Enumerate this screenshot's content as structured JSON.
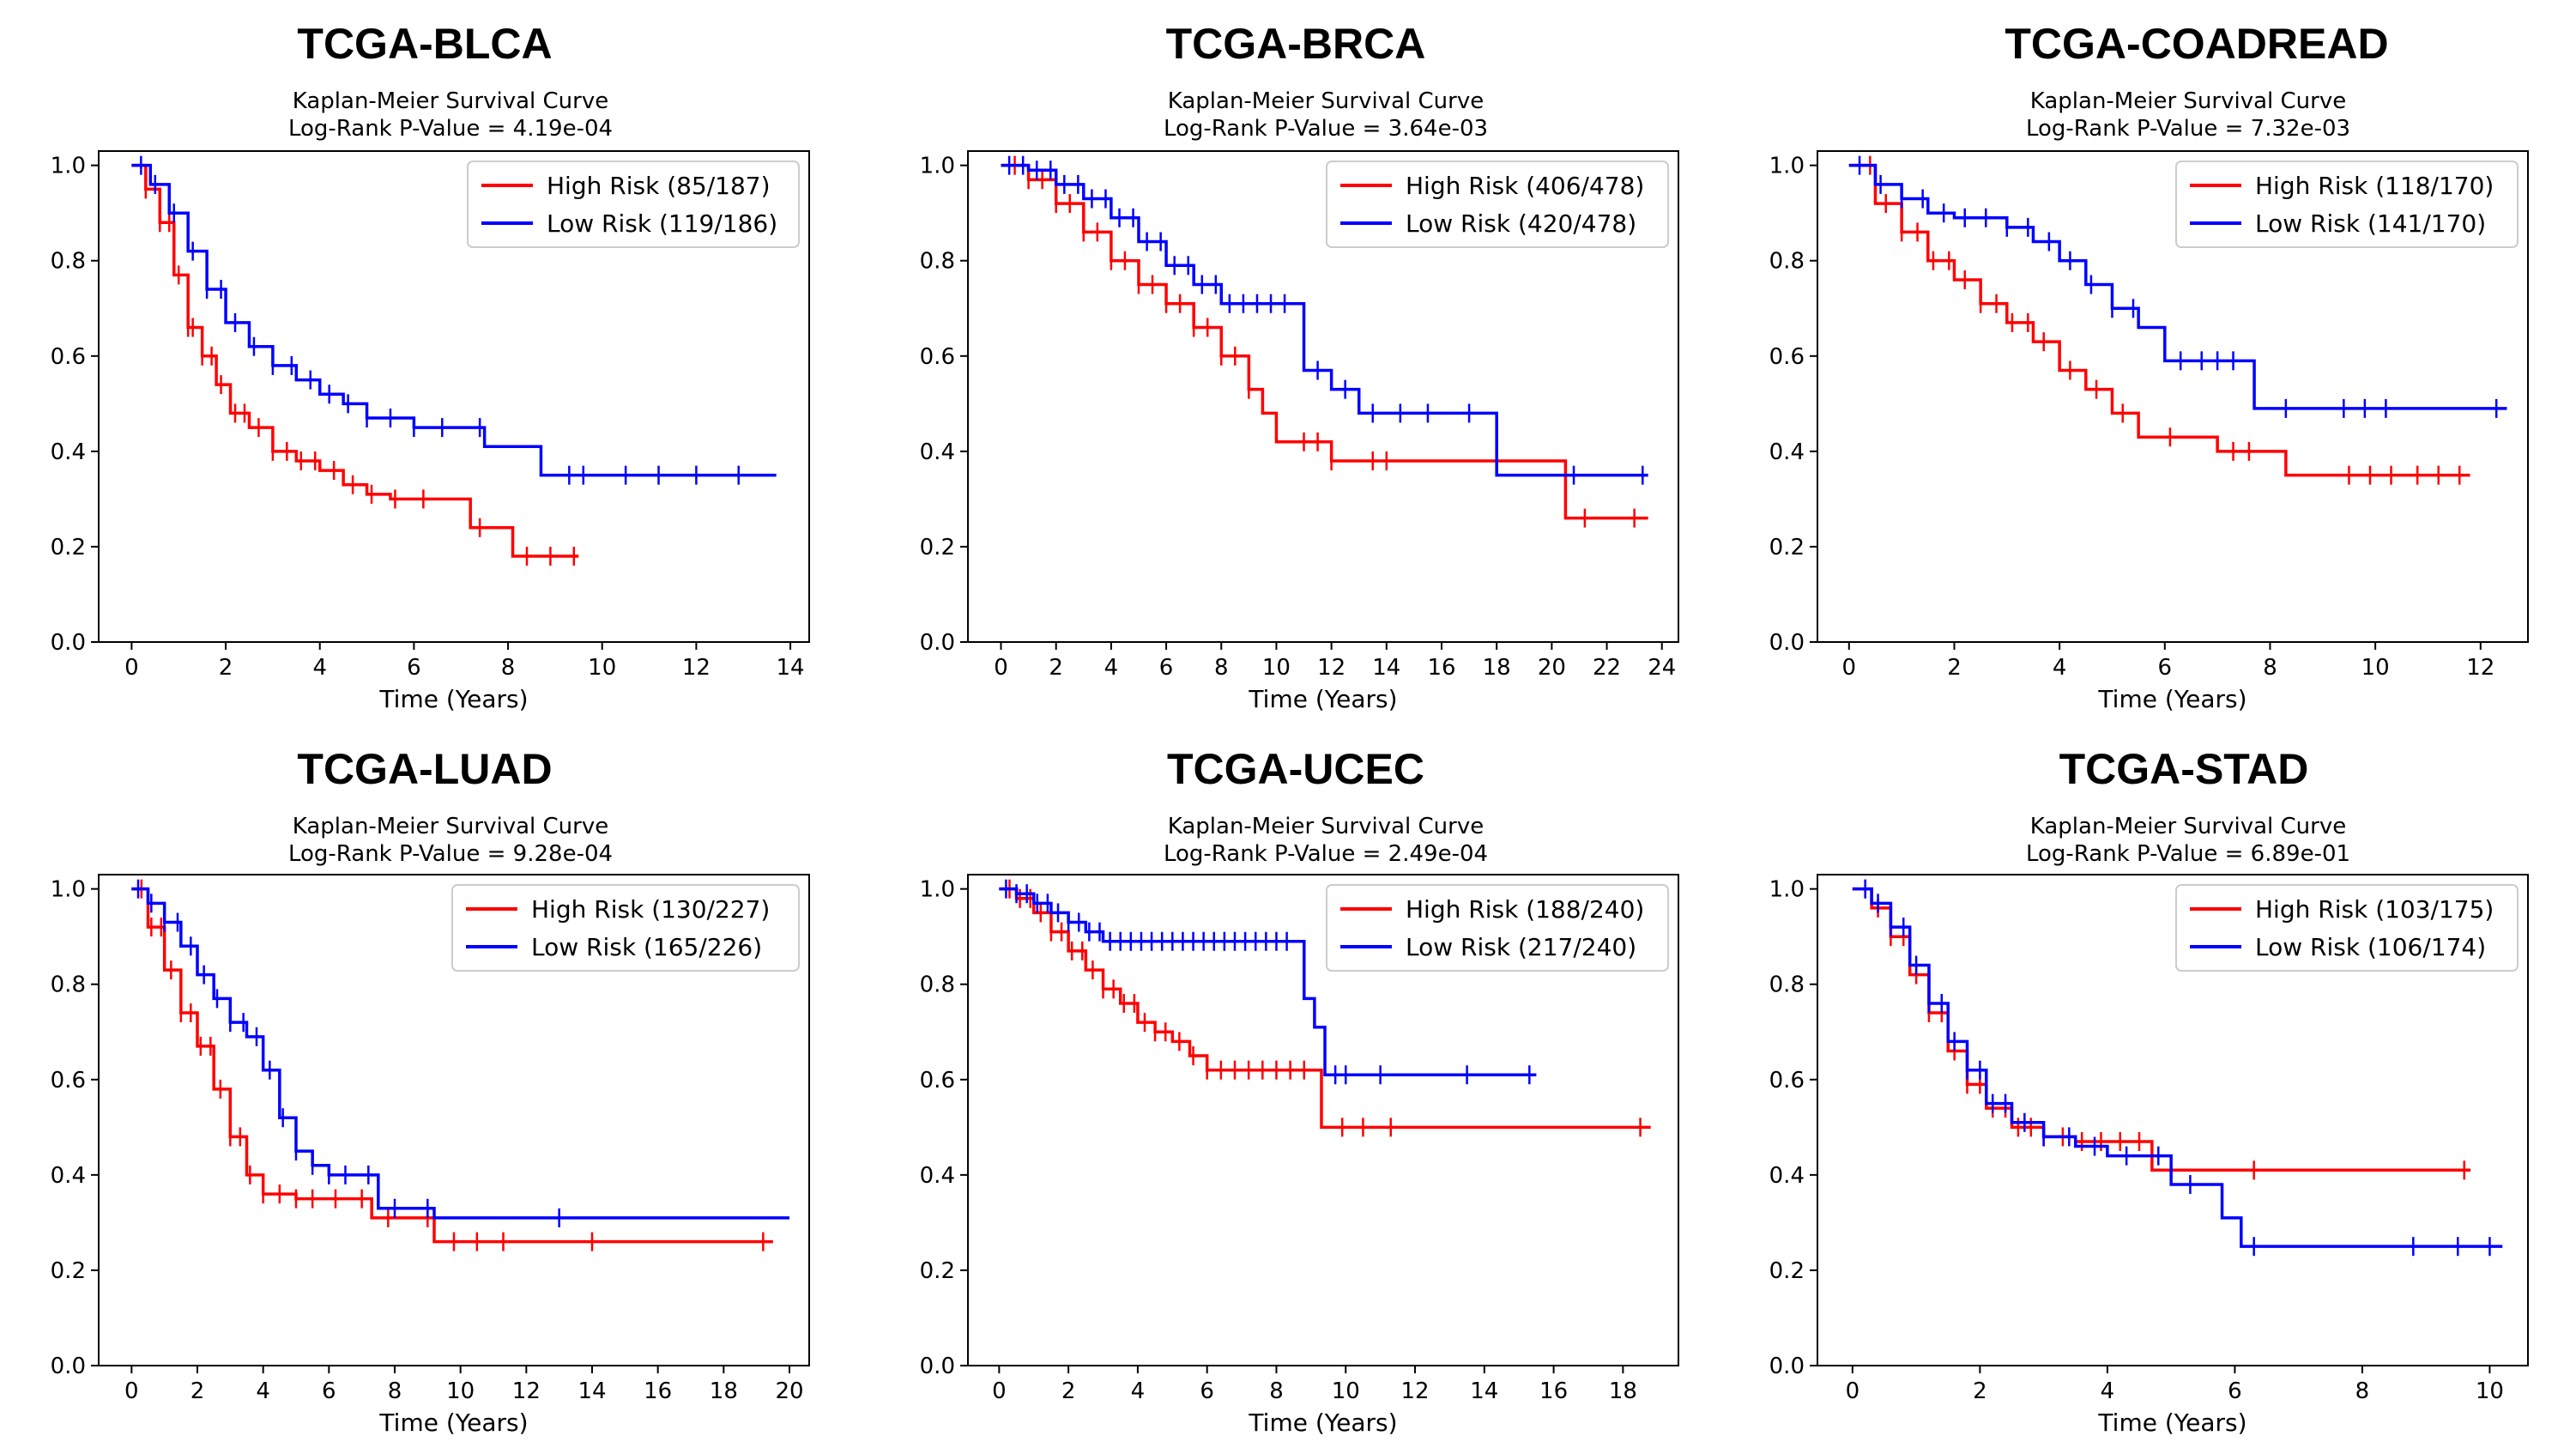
{
  "colors": {
    "high_risk": "#ff0000",
    "low_risk": "#0000ff",
    "axis": "#000000"
  },
  "chart_data": [
    {
      "type": "line",
      "title": "TCGA-BLCA",
      "subtitle": "Kaplan-Meier Survival Curve",
      "pvalue_text": "Log-Rank P-Value = 4.19e-04",
      "xlabel": "Time (Years)",
      "ylabel": "",
      "xlim": [
        -0.7,
        14.4
      ],
      "ylim": [
        0,
        1.03
      ],
      "xticks": [
        0,
        2,
        4,
        6,
        8,
        10,
        12,
        14
      ],
      "yticks": [
        0.0,
        0.2,
        0.4,
        0.6,
        0.8,
        1.0
      ],
      "legend_position": "top-right",
      "series": [
        {
          "name": "High Risk (85/187)",
          "color": "#ff0000",
          "x": [
            0,
            0.3,
            0.6,
            0.9,
            1.2,
            1.5,
            1.8,
            2.1,
            2.5,
            3.0,
            3.5,
            4.0,
            4.5,
            5.0,
            5.5,
            6.0,
            7.2,
            8.1,
            9.5
          ],
          "y": [
            1.0,
            0.95,
            0.88,
            0.77,
            0.66,
            0.6,
            0.54,
            0.48,
            0.45,
            0.4,
            0.38,
            0.36,
            0.33,
            0.31,
            0.3,
            0.3,
            0.24,
            0.18,
            0.18
          ],
          "censors": [
            0.3,
            0.6,
            0.8,
            1.0,
            1.2,
            1.3,
            1.5,
            1.7,
            1.9,
            2.2,
            2.4,
            2.7,
            3.0,
            3.3,
            3.6,
            3.9,
            4.3,
            4.7,
            5.1,
            5.6,
            6.2,
            7.4,
            8.4,
            8.9,
            9.4
          ]
        },
        {
          "name": "Low Risk (119/186)",
          "color": "#0000ff",
          "x": [
            0,
            0.4,
            0.8,
            1.2,
            1.6,
            2.0,
            2.5,
            3.0,
            3.5,
            4.0,
            4.5,
            5.0,
            6.0,
            7.5,
            8.7,
            13.7
          ],
          "y": [
            1.0,
            0.96,
            0.9,
            0.82,
            0.74,
            0.67,
            0.62,
            0.58,
            0.55,
            0.52,
            0.5,
            0.47,
            0.45,
            0.41,
            0.35,
            0.35
          ],
          "censors": [
            0.2,
            0.5,
            0.9,
            1.3,
            1.6,
            1.9,
            2.2,
            2.6,
            3.0,
            3.4,
            3.8,
            4.2,
            4.6,
            5.0,
            5.5,
            6.0,
            6.6,
            7.4,
            9.3,
            9.6,
            10.5,
            11.2,
            12.0,
            12.9
          ]
        }
      ]
    },
    {
      "type": "line",
      "title": "TCGA-BRCA",
      "subtitle": "Kaplan-Meier Survival Curve",
      "pvalue_text": "Log-Rank P-Value = 3.64e-03",
      "xlabel": "Time (Years)",
      "ylabel": "",
      "xlim": [
        -1.2,
        24.6
      ],
      "ylim": [
        0,
        1.03
      ],
      "xticks": [
        0,
        2,
        4,
        6,
        8,
        10,
        12,
        14,
        16,
        18,
        20,
        22,
        24
      ],
      "yticks": [
        0.0,
        0.2,
        0.4,
        0.6,
        0.8,
        1.0
      ],
      "legend_position": "top-right",
      "series": [
        {
          "name": "High Risk (406/478)",
          "color": "#ff0000",
          "x": [
            0,
            1,
            2,
            3,
            4,
            5,
            6,
            7,
            8,
            9,
            9.5,
            10,
            12,
            14,
            16,
            18,
            20.5,
            23.5
          ],
          "y": [
            1.0,
            0.97,
            0.92,
            0.86,
            0.8,
            0.75,
            0.71,
            0.66,
            0.6,
            0.53,
            0.48,
            0.42,
            0.38,
            0.38,
            0.38,
            0.38,
            0.26,
            0.26
          ],
          "censors": [
            0.5,
            1.0,
            1.5,
            2.0,
            2.5,
            3.0,
            3.5,
            4.0,
            4.5,
            5.0,
            5.5,
            6.0,
            6.5,
            7.0,
            7.5,
            8.0,
            8.5,
            9.0,
            11.0,
            11.5,
            12.0,
            13.5,
            14.0,
            21.2,
            23.0
          ]
        },
        {
          "name": "Low Risk (420/478)",
          "color": "#0000ff",
          "x": [
            0,
            1,
            2,
            3,
            4,
            5,
            6,
            7,
            8,
            10.5,
            11,
            12,
            13,
            17.8,
            18,
            23.5
          ],
          "y": [
            1.0,
            0.99,
            0.96,
            0.93,
            0.89,
            0.84,
            0.79,
            0.75,
            0.71,
            0.71,
            0.57,
            0.53,
            0.48,
            0.48,
            0.35,
            0.35
          ],
          "censors": [
            0.3,
            0.8,
            1.3,
            1.8,
            2.3,
            2.8,
            3.3,
            3.8,
            4.3,
            4.8,
            5.3,
            5.8,
            6.3,
            6.8,
            7.3,
            7.8,
            8.3,
            8.8,
            9.3,
            9.8,
            10.3,
            11.5,
            12.5,
            13.5,
            14.5,
            15.5,
            17.0,
            20.8,
            23.3
          ]
        }
      ]
    },
    {
      "type": "line",
      "title": "TCGA-COADREAD",
      "subtitle": "Kaplan-Meier Survival Curve",
      "pvalue_text": "Log-Rank P-Value = 7.32e-03",
      "xlabel": "Time (Years)",
      "ylabel": "",
      "xlim": [
        -0.6,
        12.9
      ],
      "ylim": [
        0,
        1.03
      ],
      "xticks": [
        0,
        2,
        4,
        6,
        8,
        10,
        12
      ],
      "yticks": [
        0.0,
        0.2,
        0.4,
        0.6,
        0.8,
        1.0
      ],
      "legend_position": "top-right",
      "series": [
        {
          "name": "High Risk (118/170)",
          "color": "#ff0000",
          "x": [
            0,
            0.5,
            1.0,
            1.5,
            2.0,
            2.5,
            3.0,
            3.5,
            4.0,
            4.5,
            5.0,
            5.5,
            7.0,
            8.3,
            11.8
          ],
          "y": [
            1.0,
            0.92,
            0.86,
            0.8,
            0.76,
            0.71,
            0.67,
            0.63,
            0.57,
            0.53,
            0.48,
            0.43,
            0.4,
            0.35,
            0.35
          ],
          "censors": [
            0.4,
            0.7,
            1.0,
            1.3,
            1.6,
            1.9,
            2.2,
            2.5,
            2.8,
            3.1,
            3.4,
            3.7,
            4.2,
            4.7,
            5.2,
            6.1,
            7.3,
            7.6,
            9.5,
            9.9,
            10.3,
            10.8,
            11.2,
            11.6
          ]
        },
        {
          "name": "Low Risk (141/170)",
          "color": "#0000ff",
          "x": [
            0,
            0.5,
            1.0,
            1.5,
            2.0,
            3.0,
            3.5,
            4.0,
            4.5,
            5.0,
            5.5,
            6.0,
            7.7,
            12.5
          ],
          "y": [
            1.0,
            0.96,
            0.93,
            0.9,
            0.89,
            0.87,
            0.84,
            0.8,
            0.75,
            0.7,
            0.66,
            0.59,
            0.49,
            0.49
          ],
          "censors": [
            0.2,
            0.6,
            1.0,
            1.4,
            1.8,
            2.2,
            2.6,
            3.0,
            3.4,
            3.8,
            4.2,
            4.6,
            5.0,
            5.4,
            6.3,
            6.7,
            7.0,
            7.3,
            8.3,
            9.4,
            9.8,
            10.2,
            12.3
          ]
        }
      ]
    },
    {
      "type": "line",
      "title": "TCGA-LUAD",
      "subtitle": "Kaplan-Meier Survival Curve",
      "pvalue_text": "Log-Rank P-Value = 9.28e-04",
      "xlabel": "Time (Years)",
      "ylabel": "",
      "xlim": [
        -1.0,
        20.6
      ],
      "ylim": [
        0,
        1.03
      ],
      "xticks": [
        0,
        2,
        4,
        6,
        8,
        10,
        12,
        14,
        16,
        18,
        20
      ],
      "yticks": [
        0.0,
        0.2,
        0.4,
        0.6,
        0.8,
        1.0
      ],
      "legend_position": "top-right",
      "series": [
        {
          "name": "High Risk (130/227)",
          "color": "#ff0000",
          "x": [
            0,
            0.5,
            1.0,
            1.5,
            2.0,
            2.5,
            3.0,
            3.5,
            4.0,
            5.0,
            6.0,
            7.3,
            9.2,
            19.5
          ],
          "y": [
            1.0,
            0.92,
            0.83,
            0.74,
            0.67,
            0.58,
            0.48,
            0.4,
            0.36,
            0.35,
            0.35,
            0.31,
            0.26,
            0.26
          ],
          "censors": [
            0.3,
            0.6,
            0.9,
            1.2,
            1.5,
            1.8,
            2.1,
            2.4,
            2.7,
            3.0,
            3.3,
            3.6,
            4.0,
            4.5,
            5.0,
            5.5,
            6.2,
            7.0,
            7.8,
            9.0,
            9.8,
            10.5,
            11.3,
            14.0,
            19.2
          ]
        },
        {
          "name": "Low Risk (165/226)",
          "color": "#0000ff",
          "x": [
            0,
            0.5,
            1.0,
            1.5,
            2.0,
            2.5,
            3.0,
            3.5,
            4.0,
            4.5,
            5.0,
            5.5,
            6.0,
            7.5,
            9.2,
            20.0
          ],
          "y": [
            1.0,
            0.97,
            0.93,
            0.88,
            0.82,
            0.77,
            0.72,
            0.69,
            0.62,
            0.52,
            0.45,
            0.42,
            0.4,
            0.33,
            0.31,
            0.31
          ],
          "censors": [
            0.2,
            0.6,
            1.0,
            1.4,
            1.8,
            2.2,
            2.6,
            3.0,
            3.4,
            3.8,
            4.2,
            4.6,
            5.0,
            5.5,
            6.0,
            6.5,
            7.2,
            8.0,
            9.0,
            13.0
          ]
        }
      ]
    },
    {
      "type": "line",
      "title": "TCGA-UCEC",
      "subtitle": "Kaplan-Meier Survival Curve",
      "pvalue_text": "Log-Rank P-Value = 2.49e-04",
      "xlabel": "Time (Years)",
      "ylabel": "",
      "xlim": [
        -0.9,
        19.6
      ],
      "ylim": [
        0,
        1.03
      ],
      "xticks": [
        0,
        2,
        4,
        6,
        8,
        10,
        12,
        14,
        16,
        18
      ],
      "yticks": [
        0.0,
        0.2,
        0.4,
        0.6,
        0.8,
        1.0
      ],
      "legend_position": "top-right",
      "series": [
        {
          "name": "High Risk (188/240)",
          "color": "#ff0000",
          "x": [
            0,
            0.5,
            1.0,
            1.5,
            2.0,
            2.5,
            3.0,
            3.5,
            4.0,
            4.5,
            5.0,
            5.5,
            6.0,
            7.0,
            9.3,
            18.8
          ],
          "y": [
            1.0,
            0.98,
            0.95,
            0.91,
            0.87,
            0.83,
            0.79,
            0.76,
            0.72,
            0.7,
            0.68,
            0.65,
            0.62,
            0.62,
            0.5,
            0.5
          ],
          "censors": [
            0.3,
            0.6,
            0.9,
            1.2,
            1.5,
            1.8,
            2.1,
            2.4,
            2.7,
            3.0,
            3.3,
            3.6,
            3.9,
            4.2,
            4.5,
            4.8,
            5.2,
            5.6,
            6.0,
            6.4,
            6.8,
            7.2,
            7.6,
            8.0,
            8.4,
            8.8,
            9.9,
            10.5,
            11.3,
            18.5
          ]
        },
        {
          "name": "Low Risk (217/240)",
          "color": "#0000ff",
          "x": [
            0,
            0.5,
            1.0,
            1.5,
            2.0,
            2.5,
            3.0,
            8.5,
            8.8,
            9.1,
            9.4,
            15.5
          ],
          "y": [
            1.0,
            0.99,
            0.97,
            0.95,
            0.93,
            0.91,
            0.89,
            0.89,
            0.77,
            0.71,
            0.61,
            0.61
          ],
          "censors": [
            0.2,
            0.5,
            0.8,
            1.1,
            1.4,
            1.7,
            2.0,
            2.3,
            2.6,
            2.9,
            3.2,
            3.5,
            3.8,
            4.1,
            4.4,
            4.7,
            5.0,
            5.3,
            5.6,
            5.9,
            6.2,
            6.5,
            6.8,
            7.1,
            7.4,
            7.7,
            8.0,
            8.3,
            9.7,
            10.0,
            11.0,
            13.5,
            15.3
          ]
        }
      ]
    },
    {
      "type": "line",
      "title": "TCGA-STAD",
      "subtitle": "Kaplan-Meier Survival Curve",
      "pvalue_text": "Log-Rank P-Value = 6.89e-01",
      "xlabel": "Time (Years)",
      "ylabel": "",
      "xlim": [
        -0.55,
        10.6
      ],
      "ylim": [
        0,
        1.03
      ],
      "xticks": [
        0,
        2,
        4,
        6,
        8,
        10
      ],
      "yticks": [
        0.0,
        0.2,
        0.4,
        0.6,
        0.8,
        1.0
      ],
      "legend_position": "top-right",
      "series": [
        {
          "name": "High Risk (103/175)",
          "color": "#ff0000",
          "x": [
            0,
            0.3,
            0.6,
            0.9,
            1.2,
            1.5,
            1.8,
            2.1,
            2.5,
            3.0,
            3.5,
            4.0,
            4.7,
            9.7
          ],
          "y": [
            1.0,
            0.96,
            0.9,
            0.82,
            0.74,
            0.66,
            0.59,
            0.54,
            0.5,
            0.48,
            0.47,
            0.47,
            0.41,
            0.41
          ],
          "censors": [
            0.2,
            0.4,
            0.6,
            0.8,
            1.0,
            1.2,
            1.4,
            1.6,
            1.8,
            2.0,
            2.2,
            2.4,
            2.6,
            2.8,
            3.0,
            3.3,
            3.6,
            3.9,
            4.2,
            4.5,
            5.0,
            6.3,
            9.6
          ]
        },
        {
          "name": "Low Risk (106/174)",
          "color": "#0000ff",
          "x": [
            0,
            0.3,
            0.6,
            0.9,
            1.2,
            1.5,
            1.8,
            2.1,
            2.5,
            3.0,
            3.5,
            4.0,
            5.0,
            5.8,
            6.1,
            10.2
          ],
          "y": [
            1.0,
            0.97,
            0.92,
            0.84,
            0.76,
            0.68,
            0.62,
            0.55,
            0.51,
            0.48,
            0.46,
            0.44,
            0.38,
            0.31,
            0.25,
            0.25
          ],
          "censors": [
            0.2,
            0.4,
            0.6,
            0.8,
            1.0,
            1.2,
            1.4,
            1.6,
            1.8,
            2.0,
            2.2,
            2.4,
            2.7,
            3.0,
            3.4,
            3.8,
            4.3,
            4.8,
            5.3,
            6.3,
            8.8,
            9.5,
            10.0
          ]
        }
      ]
    }
  ]
}
